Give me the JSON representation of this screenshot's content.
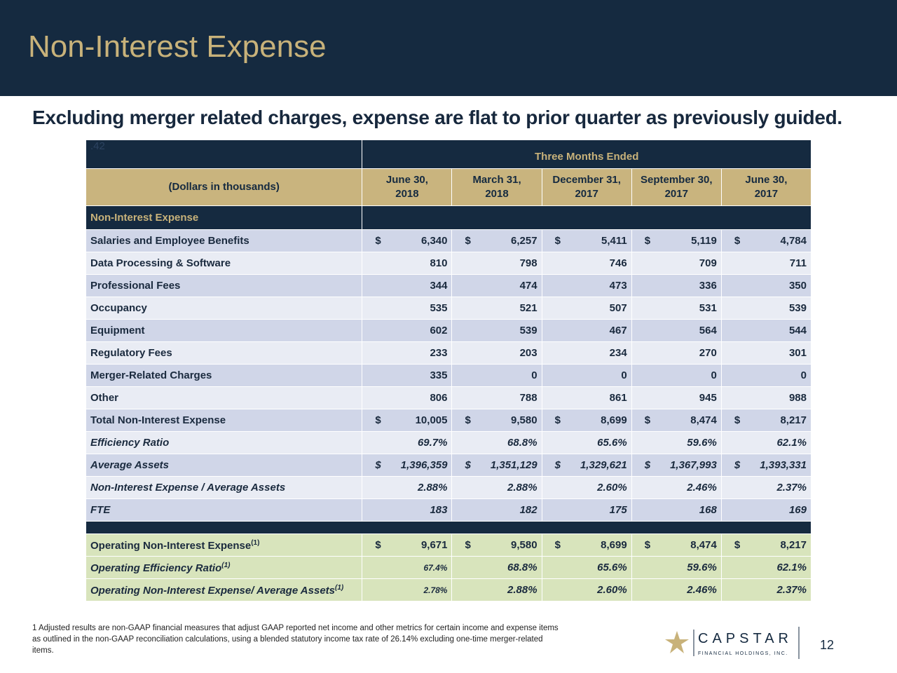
{
  "header": {
    "title": "Non-Interest Expense"
  },
  "subtitle": "Excluding merger related charges, expense are flat to prior quarter as previously guided.",
  "table": {
    "corner_mark": ".42",
    "group_header": "Three Months Ended",
    "units_label": "(Dollars in thousands)",
    "columns": [
      [
        "June 30,",
        "2018"
      ],
      [
        "March 31,",
        "2018"
      ],
      [
        "December 31,",
        "2017"
      ],
      [
        "September 30,",
        "2017"
      ],
      [
        "June 30,",
        "2017"
      ]
    ],
    "section": "Non-Interest Expense",
    "expense_rows": [
      {
        "label": "Salaries and Employee Benefits",
        "currency": "$",
        "values": [
          "6,340",
          "6,257",
          "5,411",
          "5,119",
          "4,784"
        ]
      },
      {
        "label": "Data Processing & Software",
        "values": [
          "810",
          "798",
          "746",
          "709",
          "711"
        ]
      },
      {
        "label": "Professional Fees",
        "values": [
          "344",
          "474",
          "473",
          "336",
          "350"
        ]
      },
      {
        "label": "Occupancy",
        "values": [
          "535",
          "521",
          "507",
          "531",
          "539"
        ]
      },
      {
        "label": "Equipment",
        "values": [
          "602",
          "539",
          "467",
          "564",
          "544"
        ]
      },
      {
        "label": "Regulatory Fees",
        "values": [
          "233",
          "203",
          "234",
          "270",
          "301"
        ]
      },
      {
        "label": "Merger-Related Charges",
        "values": [
          "335",
          "0",
          "0",
          "0",
          "0"
        ]
      },
      {
        "label": "Other",
        "values": [
          "806",
          "788",
          "861",
          "945",
          "988"
        ]
      },
      {
        "label": "Total Non-Interest Expense",
        "currency": "$",
        "values": [
          "10,005",
          "9,580",
          "8,699",
          "8,474",
          "8,217"
        ]
      }
    ],
    "metric_rows": [
      {
        "label": "Efficiency Ratio",
        "values": [
          "69.7%",
          "68.8%",
          "65.6%",
          "59.6%",
          "62.1%"
        ]
      },
      {
        "label": "Average Assets",
        "currency": "$",
        "values": [
          "1,396,359",
          "1,351,129",
          "1,329,621",
          "1,367,993",
          "1,393,331"
        ]
      },
      {
        "label": "Non-Interest Expense / Average Assets",
        "values": [
          "2.88%",
          "2.88%",
          "2.60%",
          "2.46%",
          "2.37%"
        ]
      },
      {
        "label": "FTE",
        "values": [
          "183",
          "182",
          "175",
          "168",
          "169"
        ]
      }
    ],
    "operating_rows": [
      {
        "label": "Operating Non-Interest Expense",
        "note": "(1)",
        "currency": "$",
        "values": [
          "9,671",
          "9,580",
          "8,699",
          "8,474",
          "8,217"
        ]
      },
      {
        "label": "Operating Efficiency Ratio",
        "note": "(1)",
        "values": [
          "67.4%",
          "68.8%",
          "65.6%",
          "59.6%",
          "62.1%"
        ]
      },
      {
        "label": "Operating Non-Interest Expense/ Average Assets",
        "note": "(1)",
        "values": [
          "2.78%",
          "2.88%",
          "2.60%",
          "2.46%",
          "2.37%"
        ]
      }
    ]
  },
  "footnote": [
    "1 Adjusted results are non-GAAP financial measures that adjust GAAP reported net income and other metrics for certain income and expense items",
    "as outlined in the non-GAAP reconciliation calculations, using a blended statutory income tax rate of 26.14% excluding one-time merger-related",
    "items."
  ],
  "logo": {
    "name": "CAPSTAR",
    "tagline": "FINANCIAL HOLDINGS, INC."
  },
  "page_number": "12"
}
